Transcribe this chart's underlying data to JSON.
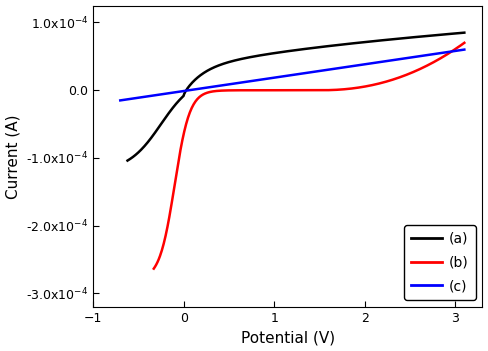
{
  "title": "",
  "xlabel": "Potential (V)",
  "ylabel": "Current (A)",
  "xlim": [
    -1,
    3.3
  ],
  "ylim": [
    -0.00032,
    0.000125
  ],
  "yticks": [
    -0.0003,
    -0.0002,
    -0.0001,
    0.0,
    0.0001
  ],
  "xticks": [
    -1,
    0,
    1,
    2,
    3
  ],
  "legend_labels": [
    "(a)",
    "(b)",
    "(c)"
  ],
  "colors": [
    "black",
    "red",
    "blue"
  ],
  "linewidths": [
    1.8,
    1.8,
    1.8
  ],
  "background_color": "#ffffff"
}
